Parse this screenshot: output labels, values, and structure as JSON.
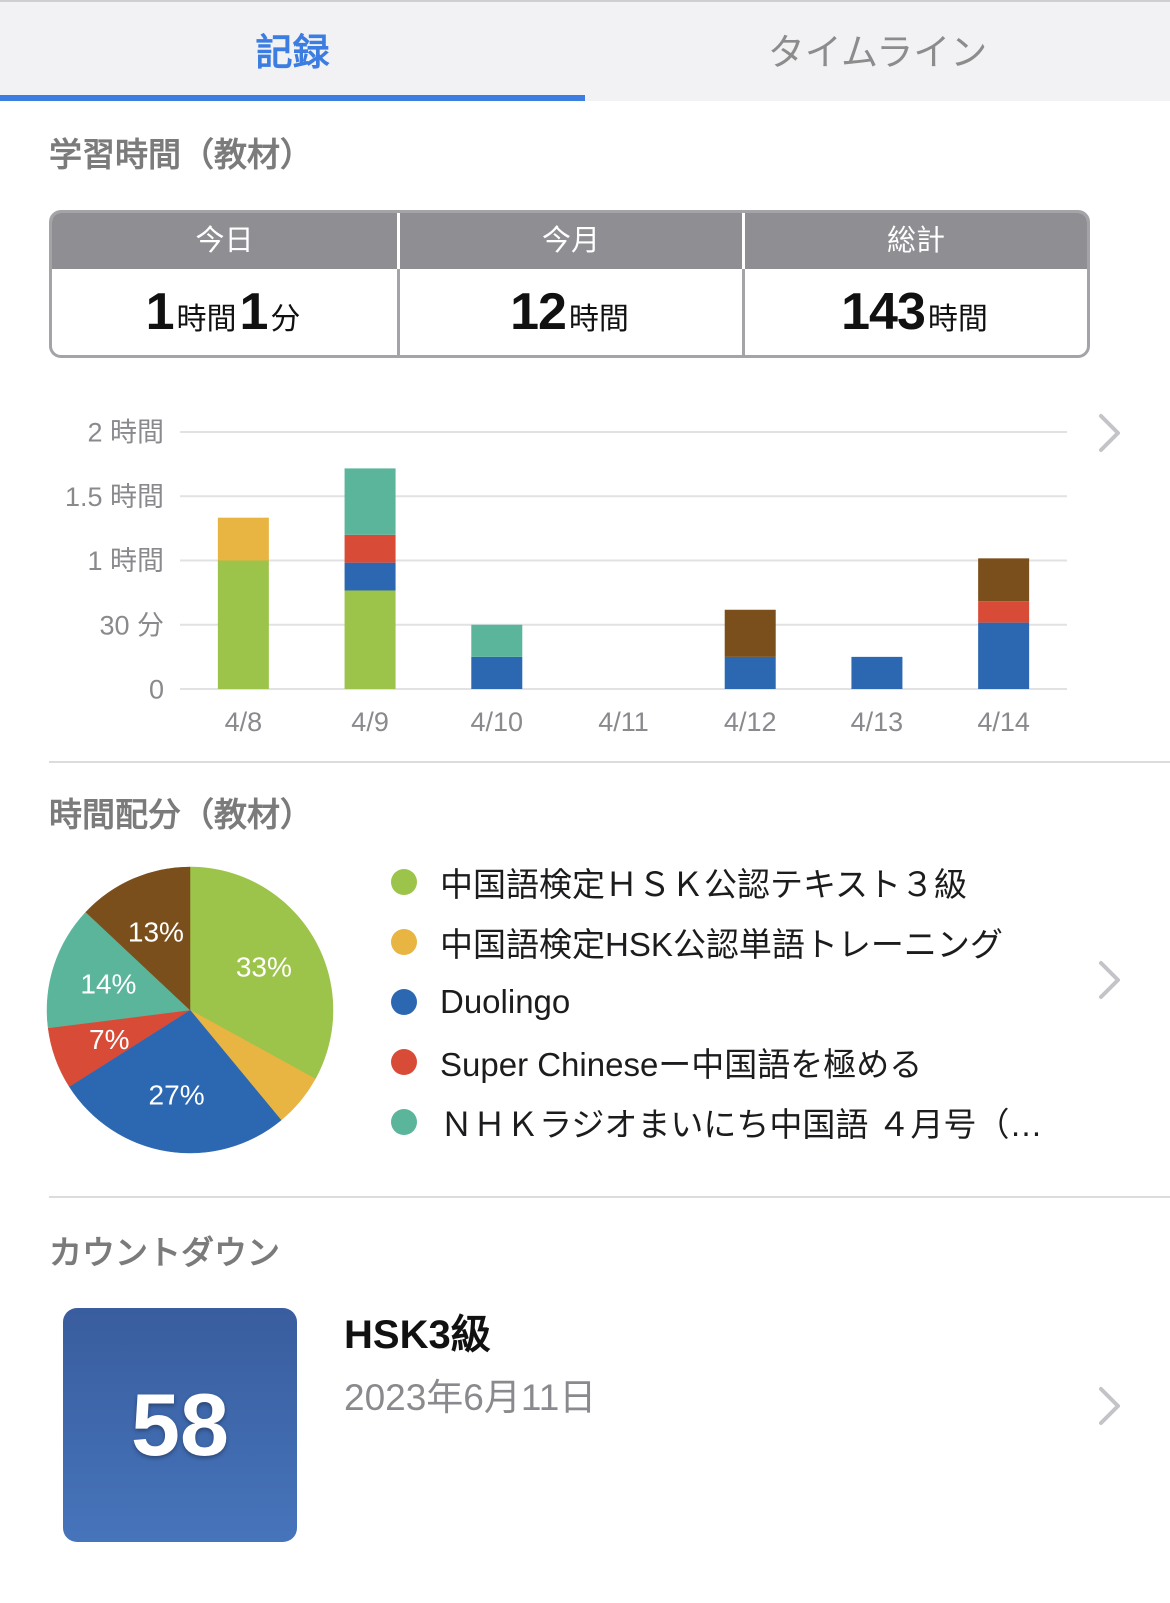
{
  "tabs": [
    {
      "label": "記録",
      "active": true
    },
    {
      "label": "タイムライン",
      "active": false
    }
  ],
  "study_time": {
    "heading": "学習時間（教材）",
    "stats": [
      {
        "label": "今日",
        "parts": [
          {
            "num": "1",
            "unit": "時間"
          },
          {
            "num": "1",
            "unit": "分"
          }
        ]
      },
      {
        "label": "今月",
        "parts": [
          {
            "num": "12",
            "unit": "時間"
          }
        ]
      },
      {
        "label": "総計",
        "parts": [
          {
            "num": "143",
            "unit": "時間"
          }
        ]
      }
    ],
    "more_icon": "chevron-right-icon"
  },
  "distribution": {
    "heading": "時間配分（教材）",
    "more_icon": "chevron-right-icon"
  },
  "countdown": {
    "heading": "カウントダウン",
    "days": "58",
    "title": "HSK3級",
    "date": "2023年6月11日",
    "more_icon": "chevron-right-icon"
  },
  "colors": {
    "accent": "#3b7de0",
    "tab_inactive": "#8c8c8c",
    "table_header": "#8e8e93",
    "heading": "#7b7b7b",
    "text_secondary": "#8a8a8e",
    "countdown_top": "#395d9e",
    "countdown_bottom": "#4674bb"
  },
  "chart_data": [
    {
      "type": "bar",
      "stacked": true,
      "categories": [
        "4/8",
        "4/9",
        "4/10",
        "4/11",
        "4/12",
        "4/13",
        "4/14"
      ],
      "ylim": [
        0,
        120
      ],
      "y_ticks": [
        {
          "value": 0,
          "label": "0"
        },
        {
          "value": 30,
          "label": "30 分"
        },
        {
          "value": 60,
          "label": "1 時間"
        },
        {
          "value": 90,
          "label": "1.5 時間"
        },
        {
          "value": 120,
          "label": "2 時間"
        }
      ],
      "grid": true,
      "series": [
        {
          "color": "#9cc34a",
          "values": [
            60,
            46,
            0,
            0,
            0,
            0,
            0
          ]
        },
        {
          "color": "#e8b442",
          "values": [
            20,
            0,
            0,
            0,
            0,
            0,
            0
          ]
        },
        {
          "color": "#2c68b2",
          "values": [
            0,
            13,
            15,
            0,
            15,
            15,
            31
          ]
        },
        {
          "color": "#d84c37",
          "values": [
            0,
            13,
            0,
            0,
            0,
            0,
            10
          ]
        },
        {
          "color": "#5bb59b",
          "values": [
            0,
            31,
            15,
            0,
            0,
            0,
            0
          ]
        },
        {
          "color": "#7b4f1b",
          "values": [
            0,
            0,
            0,
            0,
            22,
            0,
            20
          ]
        }
      ]
    },
    {
      "type": "pie",
      "legend": "right",
      "slices": [
        {
          "name": "中国語検定ＨＳＫ公認テキスト３級",
          "value": 33,
          "label": "33%",
          "color": "#9cc34a"
        },
        {
          "name": "中国語検定HSK公認単語トレーニング",
          "value": 6,
          "label": "",
          "color": "#e8b442"
        },
        {
          "name": "Duolingo",
          "value": 27,
          "label": "27%",
          "color": "#2c68b2"
        },
        {
          "name": "Super Chineseー中国語を極める",
          "value": 7,
          "label": "7%",
          "color": "#d84c37"
        },
        {
          "name": "ＮＨＫラジオまいにち中国語 ４月号（…",
          "value": 14,
          "label": "14%",
          "color": "#5bb59b"
        },
        {
          "name": "",
          "value": 13,
          "label": "13%",
          "color": "#7b4f1b"
        }
      ]
    }
  ]
}
